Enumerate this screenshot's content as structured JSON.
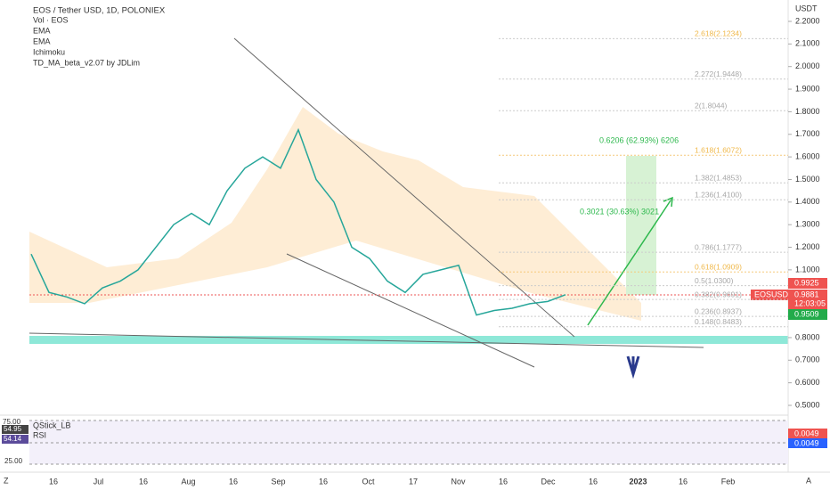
{
  "header": {
    "symbol": "EOS / Tether USD, 1D, POLONIEX",
    "indicators": [
      "Vol · EOS",
      "EMA",
      "EMA",
      "Ichimoku",
      "TD_MA_beta_v2.07 by JDLim"
    ]
  },
  "price_axis": {
    "unit": "USDT",
    "ylim": [
      0.5,
      2.2
    ],
    "yticks": [
      {
        "value": 2.2,
        "label": "2.2000"
      },
      {
        "value": 2.1,
        "label": "2.1000"
      },
      {
        "value": 2.0,
        "label": "2.0000"
      },
      {
        "value": 1.9,
        "label": "1.9000"
      },
      {
        "value": 1.8,
        "label": "1.8000"
      },
      {
        "value": 1.7,
        "label": "1.7000"
      },
      {
        "value": 1.6,
        "label": "1.6000"
      },
      {
        "value": 1.5,
        "label": "1.5000"
      },
      {
        "value": 1.4,
        "label": "1.4000"
      },
      {
        "value": 1.3,
        "label": "1.3000"
      },
      {
        "value": 1.2,
        "label": "1.2000"
      },
      {
        "value": 1.1,
        "label": "1.1000"
      },
      {
        "value": 0.8,
        "label": "0.8000"
      },
      {
        "value": 0.7,
        "label": "0.7000"
      },
      {
        "value": 0.6,
        "label": "0.6000"
      },
      {
        "value": 0.5,
        "label": "0.5000"
      }
    ]
  },
  "chart_data": {
    "type": "line",
    "series": [
      {
        "name": "EOSUSDT",
        "color": "#26a69a",
        "values": [
          1.17,
          1.0,
          0.98,
          0.95,
          1.02,
          1.05,
          1.1,
          1.2,
          1.3,
          1.35,
          1.3,
          1.45,
          1.55,
          1.6,
          1.55,
          1.72,
          1.5,
          1.4,
          1.2,
          1.15,
          1.05,
          1.0,
          1.08,
          1.1,
          1.12,
          0.9,
          0.92,
          0.93,
          0.95,
          0.96,
          0.99
        ]
      }
    ]
  },
  "fib_levels": {
    "values": [
      2.1234,
      1.9448,
      1.8044,
      1.6072,
      1.4853,
      1.41,
      1.1777,
      1.0909,
      1.03,
      0.9691,
      0.8937,
      0.8483
    ],
    "value_labels": [
      "2.618(2.1234)",
      "2.272(1.9448)",
      "2(1.8044)",
      "1.618(1.6072)",
      "1.382(1.4853)",
      "1.236(1.4100)",
      "0.786(1.1777)",
      "0.618(1.0909)",
      "0.5(1.0300)",
      "0.382(0.9691)",
      "0.236(0.8937)",
      "0.148(0.8483)"
    ]
  },
  "measurements": [
    "0.6206 (62.93%) 6206",
    "0.3021 (30.63%) 3021"
  ],
  "price_tags": {
    "high": "0.9925",
    "symbol": "EOSUSDT",
    "last": "0.9881",
    "countdown": "12:03:05",
    "low": "0.9509"
  },
  "lower_pane": {
    "indicators": [
      "QStick_LB",
      "RSI"
    ],
    "levels": [
      "75.00",
      "54.95",
      "54.14",
      "25.00"
    ],
    "tags": [
      "0.0049",
      "0.0049"
    ]
  },
  "time_axis": [
    "16",
    "Jul",
    "16",
    "Aug",
    "16",
    "Sep",
    "16",
    "Oct",
    "17",
    "Nov",
    "16",
    "Dec",
    "16",
    "2023",
    "16",
    "Feb"
  ],
  "footer": {
    "left": "Z",
    "right": "A"
  }
}
